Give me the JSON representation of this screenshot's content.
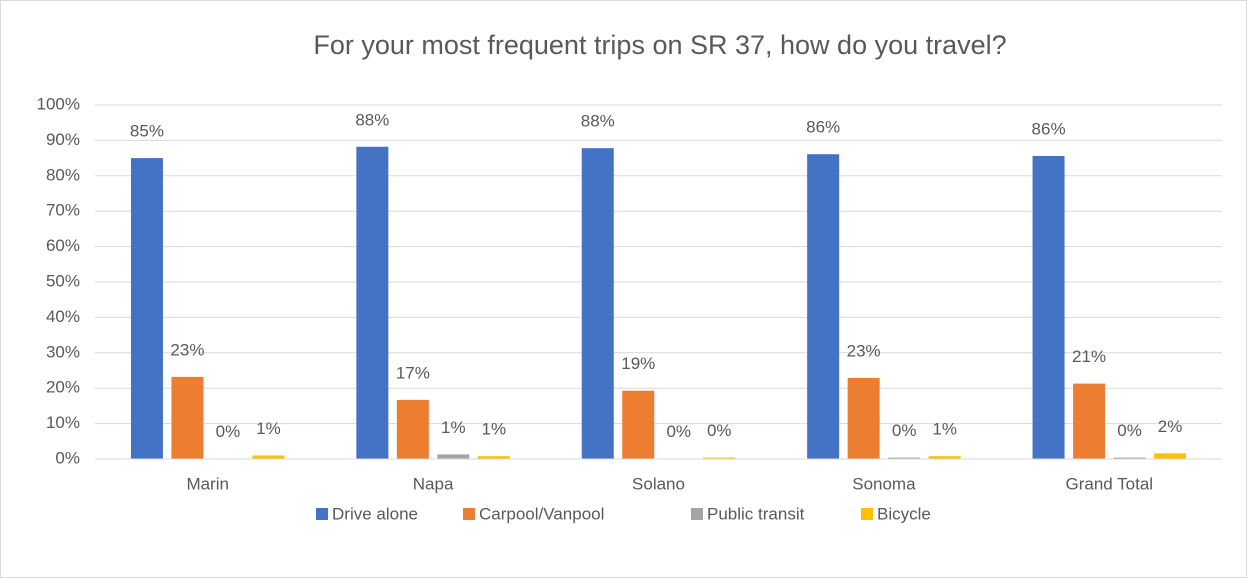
{
  "chart_data": {
    "type": "bar",
    "title": "For your most frequent trips on SR 37, how do you travel?",
    "categories": [
      "Marin",
      "Napa",
      "Solano",
      "Sonoma",
      "Grand Total"
    ],
    "series": [
      {
        "name": "Drive alone",
        "color": "#4472c4",
        "values": [
          85.0,
          88.2,
          87.8,
          86.1,
          85.6
        ],
        "value_labels": [
          "85%",
          "88%",
          "88%",
          "86%",
          "86%"
        ]
      },
      {
        "name": "Carpool/Vanpool",
        "color": "#ed7d31",
        "values": [
          23.2,
          16.7,
          19.3,
          22.9,
          21.3
        ],
        "value_labels": [
          "23%",
          "17%",
          "19%",
          "23%",
          "21%"
        ]
      },
      {
        "name": "Public transit",
        "color": "#a5a5a5",
        "values": [
          0.1,
          1.3,
          0.1,
          0.4,
          0.4
        ],
        "value_labels": [
          "0%",
          "1%",
          "0%",
          "0%",
          "0%"
        ]
      },
      {
        "name": "Bicycle",
        "color": "#ffc000",
        "values": [
          1.0,
          0.8,
          0.4,
          0.8,
          1.6
        ],
        "value_labels": [
          "1%",
          "1%",
          "0%",
          "1%",
          "2%"
        ]
      }
    ],
    "ylim": [
      0,
      100
    ],
    "yticks": [
      {
        "value": 0,
        "label": "0%"
      },
      {
        "value": 10,
        "label": "10%"
      },
      {
        "value": 20,
        "label": "20%"
      },
      {
        "value": 30,
        "label": "30%"
      },
      {
        "value": 40,
        "label": "40%"
      },
      {
        "value": 50,
        "label": "50%"
      },
      {
        "value": 60,
        "label": "60%"
      },
      {
        "value": 70,
        "label": "70%"
      },
      {
        "value": 80,
        "label": "80%"
      },
      {
        "value": 90,
        "label": "90%"
      },
      {
        "value": 100,
        "label": "100%"
      }
    ],
    "grid": true,
    "legend": "bottom"
  }
}
